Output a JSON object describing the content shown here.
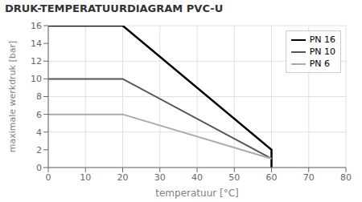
{
  "chart_data": {
    "type": "line",
    "title": "DRUK-TEMPERATUURDIAGRAM PVC-U",
    "x_label": "temperatuur [°C]",
    "y_label": "maximale werkdruk [bar]",
    "xlim": [
      0,
      80
    ],
    "ylim": [
      0,
      16
    ],
    "xticks": [
      0,
      10,
      20,
      30,
      40,
      50,
      60,
      70,
      80
    ],
    "yticks": [
      0,
      2,
      4,
      6,
      8,
      10,
      12,
      14,
      16
    ],
    "grid": true,
    "legend": "upper right",
    "series": [
      {
        "name": "PN 16",
        "color": "#000000",
        "x": [
          0,
          20,
          60,
          60
        ],
        "values": [
          16,
          16,
          2,
          0
        ]
      },
      {
        "name": "PN 10",
        "color": "#555555",
        "x": [
          0,
          20,
          60
        ],
        "values": [
          10,
          10,
          1
        ]
      },
      {
        "name": "PN 6",
        "color": "#aaaaaa",
        "x": [
          0,
          20,
          60
        ],
        "values": [
          6,
          6,
          1
        ]
      }
    ]
  }
}
